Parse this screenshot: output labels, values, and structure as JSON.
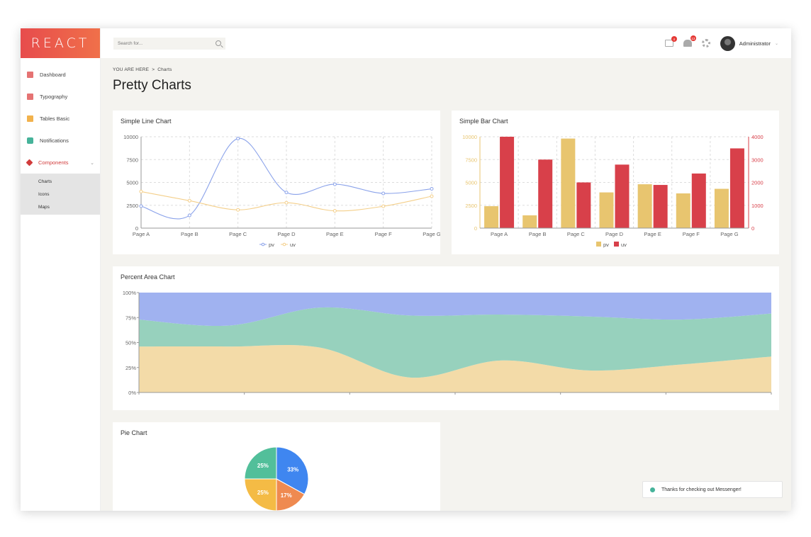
{
  "brand": {
    "logo_text": "REACT"
  },
  "sidebar": {
    "items": [
      {
        "label": "Dashboard",
        "icon": "home-icon",
        "color": "#e57373"
      },
      {
        "label": "Typography",
        "icon": "edit-icon",
        "color": "#e57373"
      },
      {
        "label": "Tables Basic",
        "icon": "table-icon",
        "color": "#f2b24c"
      },
      {
        "label": "Notifications",
        "icon": "chat-icon",
        "color": "#46b39a"
      },
      {
        "label": "Components",
        "icon": "components-icon",
        "color": "#d13b3b"
      }
    ],
    "subitems": [
      {
        "label": "Charts"
      },
      {
        "label": "Icons"
      },
      {
        "label": "Maps"
      }
    ]
  },
  "topbar": {
    "search_placeholder": "Search for...",
    "mail_badge": "4",
    "notif_badge": "13",
    "username": "Administrator"
  },
  "breadcrumb": {
    "prefix": "YOU ARE HERE",
    "separator": ">",
    "current": "Charts"
  },
  "page_title": "Pretty Charts",
  "cards": {
    "line": {
      "title": "Simple Line Chart"
    },
    "bar": {
      "title": "Simple Bar Chart"
    },
    "area": {
      "title": "Percent Area Chart"
    },
    "pie": {
      "title": "Pie Chart"
    }
  },
  "toast": {
    "text": "Thanks for checking out Messenger!"
  },
  "chart_data": [
    {
      "type": "line",
      "title": "Simple Line Chart",
      "categories": [
        "Page A",
        "Page B",
        "Page C",
        "Page D",
        "Page E",
        "Page F",
        "Page G"
      ],
      "yticks": [
        "0",
        "2500",
        "5000",
        "7500",
        "10000"
      ],
      "ylim": [
        0,
        10000
      ],
      "grid": true,
      "legend": "bottom",
      "series": [
        {
          "name": "pv",
          "color": "#8aa2ea",
          "values": [
            2400,
            1398,
            9800,
            3908,
            4800,
            3800,
            4300
          ]
        },
        {
          "name": "uv",
          "color": "#f4cf8a",
          "values": [
            4000,
            3000,
            2000,
            2780,
            1890,
            2390,
            3490
          ]
        }
      ]
    },
    {
      "type": "bar",
      "title": "Simple Bar Chart",
      "categories": [
        "Page A",
        "Page B",
        "Page C",
        "Page D",
        "Page E",
        "Page F",
        "Page G"
      ],
      "left_yticks": [
        "0",
        "2500",
        "5000",
        "7500",
        "10000"
      ],
      "right_yticks": [
        "0",
        "1000",
        "2000",
        "3000",
        "4000"
      ],
      "ylim_left": [
        0,
        10000
      ],
      "ylim_right": [
        0,
        4000
      ],
      "grid": true,
      "legend": "bottom",
      "series": [
        {
          "name": "pv",
          "color": "#e8c56f",
          "axis": "left",
          "values": [
            2400,
            1398,
            9800,
            3908,
            4800,
            3800,
            4300
          ]
        },
        {
          "name": "uv",
          "color": "#d8404a",
          "axis": "right",
          "values": [
            4000,
            3000,
            2000,
            2780,
            1890,
            2390,
            3490
          ]
        }
      ]
    },
    {
      "type": "area",
      "title": "Percent Area Chart",
      "stacked": "percent",
      "yticks": [
        "0%",
        "25%",
        "50%",
        "75%",
        "100%"
      ],
      "ylim": [
        0,
        100
      ],
      "series": [
        {
          "name": "bottom",
          "color": "#f3dba8",
          "values": [
            46,
            46,
            45,
            15,
            32,
            22,
            28,
            36
          ]
        },
        {
          "name": "middle",
          "color": "#97d1bd",
          "values": [
            27,
            21,
            40,
            62,
            46,
            54,
            45,
            43
          ]
        },
        {
          "name": "top",
          "color": "#a0b2f0",
          "values": [
            27,
            33,
            15,
            23,
            22,
            24,
            27,
            21
          ]
        }
      ]
    },
    {
      "type": "pie",
      "title": "Pie Chart",
      "slices": [
        {
          "label": "33%",
          "value": 33,
          "color": "#3f86f0"
        },
        {
          "label": "17%",
          "value": 17,
          "color": "#ef8a50"
        },
        {
          "label": "25%",
          "value": 25,
          "color": "#f4bb45"
        },
        {
          "label": "25%",
          "value": 25,
          "color": "#52bf9a"
        }
      ]
    }
  ]
}
